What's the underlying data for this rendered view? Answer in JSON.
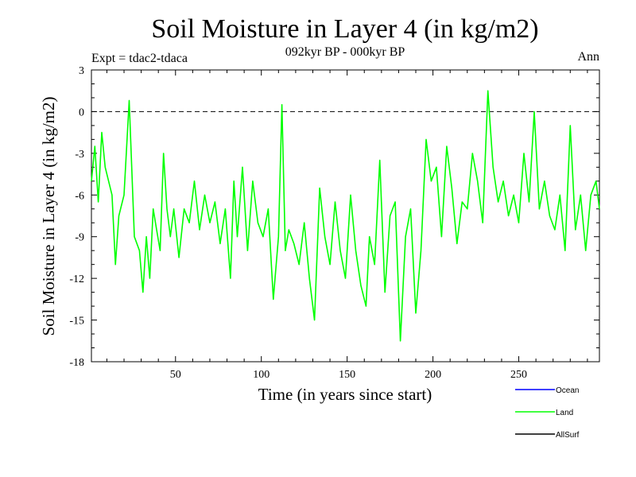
{
  "chart_data": {
    "type": "line",
    "title": "Soil Moisture in Layer 4 (in kg/m2)",
    "subtitle": "092kyr BP - 000kyr BP",
    "experiment_label": "Expt = tdac2-tdaca",
    "season_label": "Ann",
    "xlabel": "Time (in years since start)",
    "ylabel": "Soil Moisture in Layer 4 (in kg/m2)",
    "xlim": [
      1,
      297
    ],
    "ylim": [
      -18,
      3
    ],
    "xticks": [
      50,
      100,
      150,
      200,
      250
    ],
    "yticks": [
      3,
      0,
      -3,
      -6,
      -9,
      -12,
      -15,
      -18
    ],
    "reference_line": {
      "y": 0,
      "style": "dashed"
    },
    "series": [
      {
        "name": "Ocean",
        "color": "#0000ff",
        "x": [],
        "values": []
      },
      {
        "name": "Land",
        "color": "#00ff00",
        "x": [
          1,
          3,
          5,
          7,
          9,
          11,
          13,
          15,
          17,
          20,
          23,
          26,
          29,
          31,
          33,
          35,
          37,
          39,
          41,
          43,
          45,
          47,
          49,
          52,
          55,
          58,
          61,
          64,
          67,
          70,
          73,
          76,
          79,
          82,
          84,
          86,
          89,
          92,
          95,
          98,
          101,
          104,
          107,
          110,
          112,
          114,
          116,
          119,
          122,
          125,
          128,
          131,
          134,
          137,
          140,
          143,
          146,
          149,
          152,
          155,
          158,
          161,
          163,
          166,
          169,
          172,
          175,
          178,
          181,
          184,
          187,
          190,
          193,
          196,
          199,
          202,
          205,
          208,
          211,
          214,
          217,
          220,
          223,
          226,
          229,
          232,
          235,
          238,
          241,
          244,
          247,
          250,
          253,
          256,
          259,
          262,
          265,
          268,
          271,
          274,
          277,
          280,
          283,
          286,
          289,
          292,
          295,
          297
        ],
        "values": [
          -5,
          -2.5,
          -6.5,
          -1.5,
          -4,
          -5,
          -6,
          -11,
          -7.5,
          -6,
          0.8,
          -9,
          -10,
          -13,
          -9,
          -12,
          -7,
          -8.5,
          -10,
          -3,
          -7,
          -9,
          -7,
          -10.5,
          -7,
          -8,
          -5,
          -8.5,
          -6,
          -8,
          -6.5,
          -9.5,
          -7,
          -12,
          -5,
          -9,
          -4,
          -10,
          -5,
          -8,
          -9,
          -7,
          -13.5,
          -9,
          0.5,
          -10,
          -8.5,
          -9.5,
          -11,
          -8,
          -12,
          -15,
          -5.5,
          -9,
          -11,
          -6.5,
          -10,
          -12,
          -6,
          -10,
          -12.5,
          -14,
          -9,
          -11,
          -3.5,
          -13,
          -7.5,
          -6.5,
          -16.5,
          -9,
          -7,
          -14.5,
          -10,
          -2,
          -5,
          -4,
          -9,
          -2.5,
          -5.5,
          -9.5,
          -6.5,
          -7,
          -3,
          -5,
          -8,
          1.5,
          -4,
          -6.5,
          -5,
          -7.5,
          -6,
          -8,
          -3,
          -6.5,
          0,
          -7,
          -5,
          -7.5,
          -8.5,
          -6,
          -10,
          -1,
          -8.5,
          -6,
          -10,
          -6,
          -5,
          -7
        ]
      },
      {
        "name": "AllSurf",
        "color": "#000000",
        "x": [],
        "values": []
      }
    ]
  }
}
